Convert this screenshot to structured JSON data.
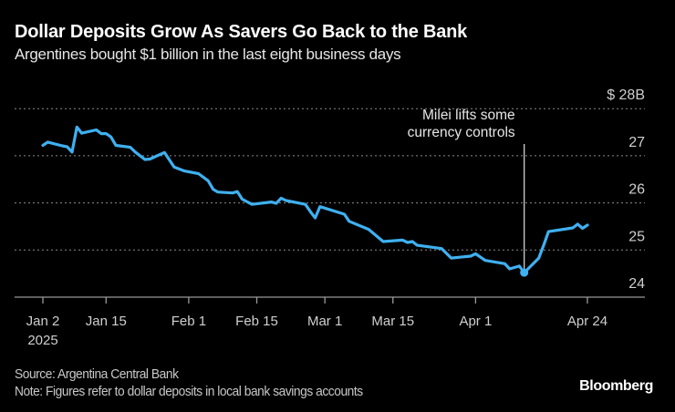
{
  "title": "Dollar Deposits Grow As Savers Go Back to the Bank",
  "subtitle": "Argentines bought $1 billion in the last eight business days",
  "source": "Source: Argentina Central Bank",
  "note": "Note: Figures refer to dollar deposits in local bank savings accounts",
  "logo": "Bloomberg",
  "chart_data": {
    "type": "line",
    "title": "Dollar Deposits Grow As Savers Go Back to the Bank",
    "subtitle": "Argentines bought $1 billion in the last eight business days",
    "xlabel": "",
    "ylabel": "",
    "ylim": [
      24,
      28
    ],
    "xlim": [
      "2025-01-02",
      "2025-04-24"
    ],
    "y_ticks": [
      {
        "value": 24,
        "label": "24"
      },
      {
        "value": 25,
        "label": "25"
      },
      {
        "value": 26,
        "label": "26"
      },
      {
        "value": 27,
        "label": "27"
      },
      {
        "value": 28,
        "label": "$ 28B"
      }
    ],
    "x_ticks": [
      {
        "date": "2025-01-02",
        "label": "Jan 2",
        "sublabel": "2025"
      },
      {
        "date": "2025-01-15",
        "label": "Jan 15"
      },
      {
        "date": "2025-02-01",
        "label": "Feb 1"
      },
      {
        "date": "2025-02-15",
        "label": "Feb 15"
      },
      {
        "date": "2025-03-01",
        "label": "Mar 1"
      },
      {
        "date": "2025-03-15",
        "label": "Mar 15"
      },
      {
        "date": "2025-04-01",
        "label": "Apr 1"
      },
      {
        "date": "2025-04-24",
        "label": "Apr 24"
      }
    ],
    "grid": "horizontal dotted",
    "line_color": "#3fb0f0",
    "annotation": {
      "date": "2025-04-11",
      "value": 24.52,
      "text_lines": [
        "Milei lifts some",
        "currency controls"
      ]
    },
    "series": [
      {
        "points": [
          [
            "2025-01-02",
            27.22
          ],
          [
            "2025-01-03",
            27.29
          ],
          [
            "2025-01-06",
            27.21
          ],
          [
            "2025-01-07",
            27.19
          ],
          [
            "2025-01-08",
            27.08
          ],
          [
            "2025-01-09",
            27.61
          ],
          [
            "2025-01-10",
            27.48
          ],
          [
            "2025-01-13",
            27.55
          ],
          [
            "2025-01-14",
            27.47
          ],
          [
            "2025-01-15",
            27.47
          ],
          [
            "2025-01-16",
            27.4
          ],
          [
            "2025-01-17",
            27.22
          ],
          [
            "2025-01-20",
            27.18
          ],
          [
            "2025-01-21",
            27.08
          ],
          [
            "2025-01-23",
            26.92
          ],
          [
            "2025-01-24",
            26.93
          ],
          [
            "2025-01-27",
            27.07
          ],
          [
            "2025-01-29",
            26.76
          ],
          [
            "2025-01-31",
            26.68
          ],
          [
            "2025-02-03",
            26.62
          ],
          [
            "2025-02-05",
            26.47
          ],
          [
            "2025-02-06",
            26.29
          ],
          [
            "2025-02-07",
            26.23
          ],
          [
            "2025-02-10",
            26.21
          ],
          [
            "2025-02-11",
            26.24
          ],
          [
            "2025-02-12",
            26.08
          ],
          [
            "2025-02-14",
            25.97
          ],
          [
            "2025-02-18",
            26.02
          ],
          [
            "2025-02-19",
            25.99
          ],
          [
            "2025-02-20",
            26.1
          ],
          [
            "2025-02-21",
            26.05
          ],
          [
            "2025-02-25",
            25.97
          ],
          [
            "2025-02-26",
            25.82
          ],
          [
            "2025-02-27",
            25.68
          ],
          [
            "2025-02-28",
            25.92
          ],
          [
            "2025-03-05",
            25.76
          ],
          [
            "2025-03-06",
            25.61
          ],
          [
            "2025-03-10",
            25.44
          ],
          [
            "2025-03-13",
            25.18
          ],
          [
            "2025-03-17",
            25.21
          ],
          [
            "2025-03-18",
            25.16
          ],
          [
            "2025-03-19",
            25.18
          ],
          [
            "2025-03-20",
            25.1
          ],
          [
            "2025-03-25",
            25.03
          ],
          [
            "2025-03-27",
            24.83
          ],
          [
            "2025-03-31",
            24.87
          ],
          [
            "2025-04-01",
            24.92
          ],
          [
            "2025-04-03",
            24.78
          ],
          [
            "2025-04-07",
            24.71
          ],
          [
            "2025-04-08",
            24.6
          ],
          [
            "2025-04-10",
            24.66
          ],
          [
            "2025-04-11",
            24.52
          ],
          [
            "2025-04-14",
            24.83
          ],
          [
            "2025-04-15",
            25.1
          ],
          [
            "2025-04-16",
            25.39
          ],
          [
            "2025-04-21",
            25.47
          ],
          [
            "2025-04-22",
            25.55
          ],
          [
            "2025-04-23",
            25.46
          ],
          [
            "2025-04-24",
            25.53
          ]
        ]
      }
    ]
  }
}
